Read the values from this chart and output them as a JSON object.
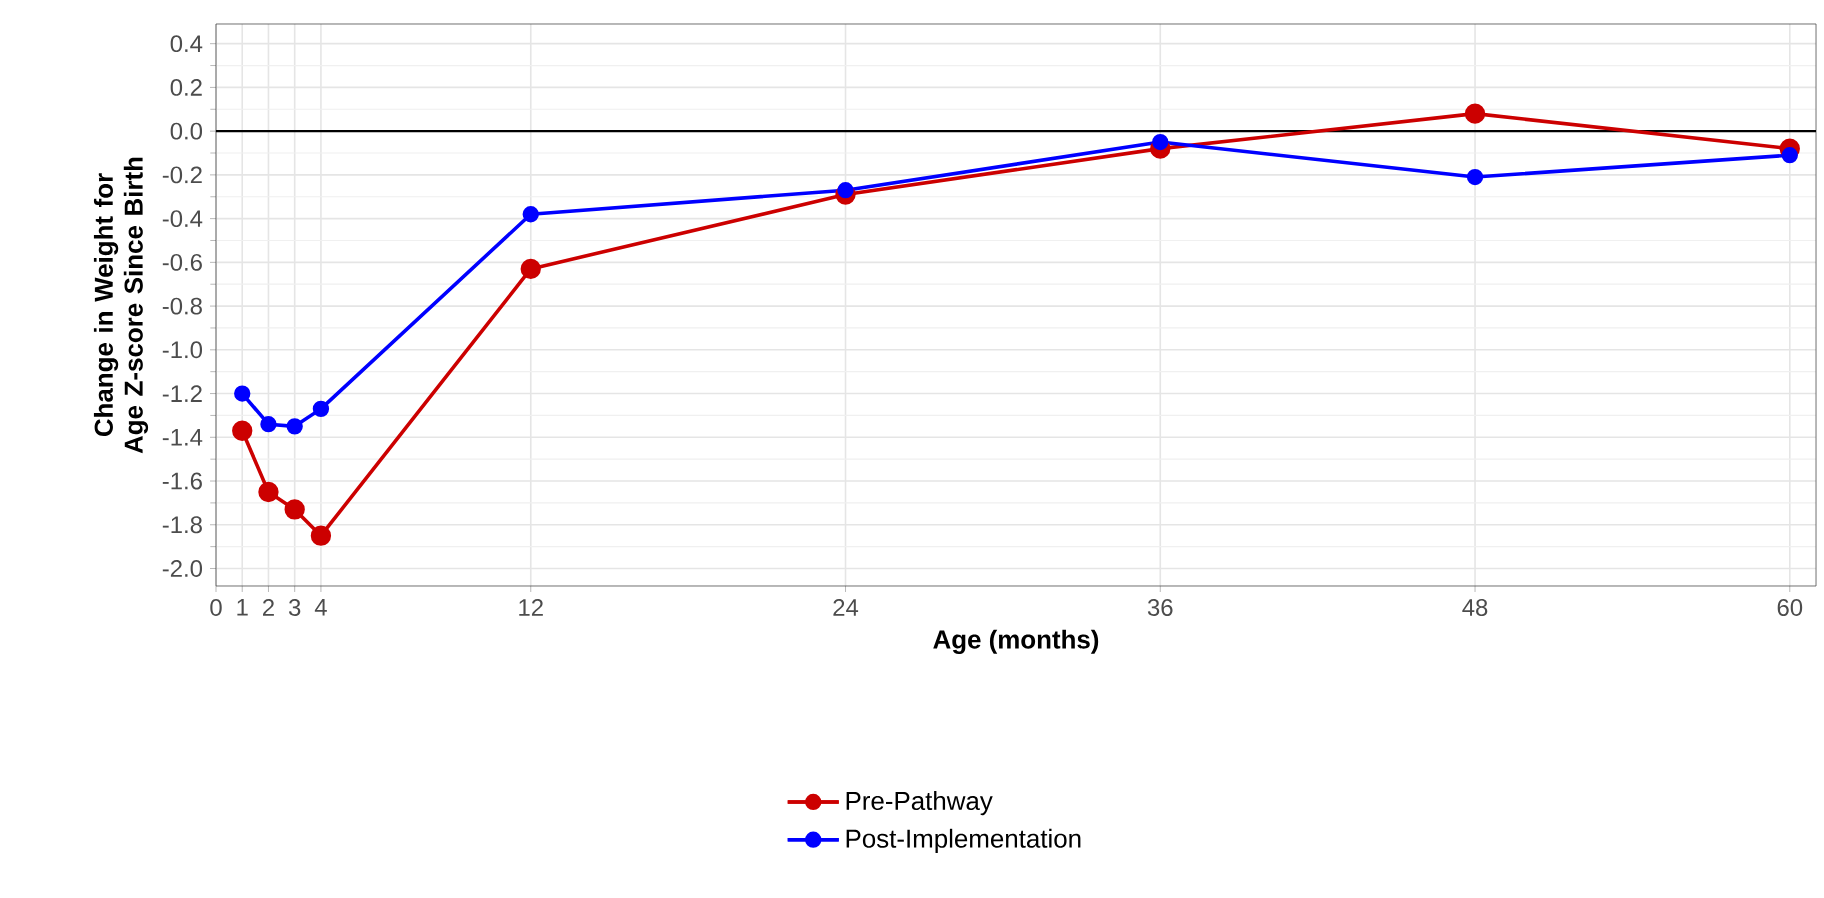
{
  "chart_data": {
    "type": "line",
    "xlabel": "Age (months)",
    "ylabel": "Change in Weight for Age Z-score Since Birth",
    "x": [
      1,
      2,
      3,
      4,
      12,
      24,
      36,
      48,
      60
    ],
    "series": [
      {
        "name": "Pre-Pathway",
        "color": "#cc0000",
        "values": [
          -1.37,
          -1.65,
          -1.73,
          -1.85,
          -0.63,
          -0.29,
          -0.08,
          0.08,
          -0.08
        ]
      },
      {
        "name": "Post-Implementation",
        "color": "#0000ff",
        "values": [
          -1.2,
          -1.34,
          -1.35,
          -1.27,
          -0.38,
          -0.27,
          -0.05,
          -0.21,
          -0.11
        ]
      }
    ],
    "xlim": [
      0,
      61
    ],
    "xticks": [
      0,
      1,
      2,
      3,
      4,
      12,
      24,
      36,
      48,
      60
    ],
    "ylim": [
      -2.08,
      0.49
    ],
    "yticks": [
      {
        "value": 0.4,
        "label": "0.4"
      },
      {
        "value": 0.2,
        "label": "0.2"
      },
      {
        "value": 0,
        "label": "0.0"
      },
      {
        "value": -0.2,
        "label": "-0.2"
      },
      {
        "value": -0.4,
        "label": "-0.4"
      },
      {
        "value": -0.6,
        "label": "-0.6"
      },
      {
        "value": -0.8,
        "label": "-0.8"
      },
      {
        "value": -1.0,
        "label": "-1.0"
      },
      {
        "value": -1.2,
        "label": "-1.2"
      },
      {
        "value": -1.4,
        "label": "-1.4"
      },
      {
        "value": -1.6,
        "label": "-1.6"
      },
      {
        "value": -1.8,
        "label": "-1.8"
      },
      {
        "value": -2.0,
        "label": "-2.0"
      }
    ],
    "ref_lines": [
      {
        "axis": "y",
        "value": 0,
        "color": "#000000"
      }
    ],
    "grid": true,
    "legend": "bottom",
    "marker": "circle",
    "line_style": "solid"
  }
}
